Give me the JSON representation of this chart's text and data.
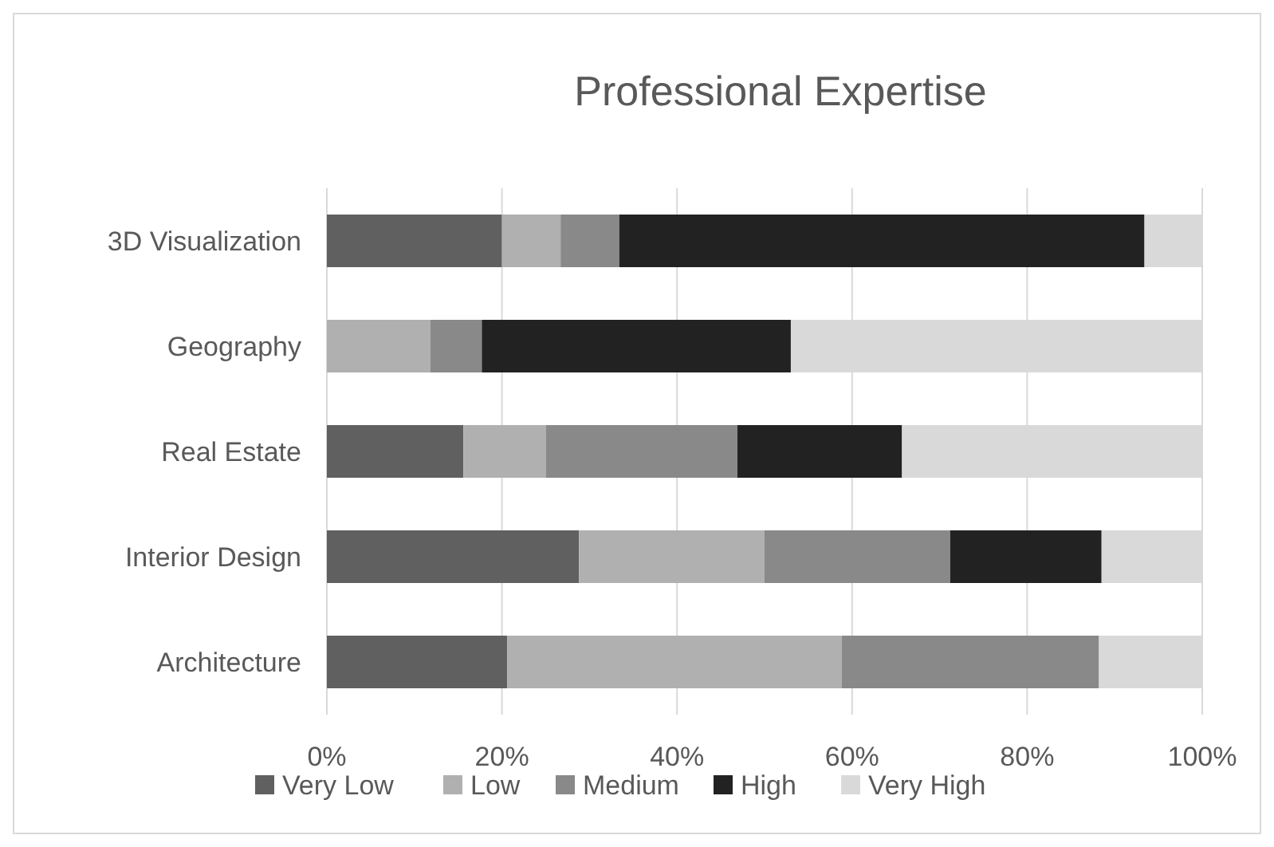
{
  "chart_data": {
    "type": "bar",
    "title": "Professional Expertise",
    "orientation": "horizontal",
    "stacked": true,
    "categories": [
      "3D Visualization",
      "Geography",
      "Real Estate",
      "Interior Design",
      "Architecture"
    ],
    "series": [
      {
        "name": "Very Low",
        "color": "#606060",
        "values": [
          20,
          0,
          15.6,
          28.8,
          20.6
        ]
      },
      {
        "name": "Low",
        "color": "#b0b0b0",
        "values": [
          6.7,
          11.8,
          9.4,
          21.2,
          38.2
        ]
      },
      {
        "name": "Medium",
        "color": "#898989",
        "values": [
          6.7,
          5.9,
          21.9,
          21.2,
          29.4
        ]
      },
      {
        "name": "High",
        "color": "#222222",
        "values": [
          60,
          35.3,
          18.8,
          17.3,
          0
        ]
      },
      {
        "name": "Very High",
        "color": "#d9d9d9",
        "values": [
          6.6,
          47,
          34.3,
          11.5,
          11.8
        ]
      }
    ],
    "xlim": [
      0,
      100
    ],
    "xticks": [
      {
        "value": 0,
        "label": "0%"
      },
      {
        "value": 20,
        "label": "20%"
      },
      {
        "value": 40,
        "label": "40%"
      },
      {
        "value": 60,
        "label": "60%"
      },
      {
        "value": 80,
        "label": "80%"
      },
      {
        "value": 100,
        "label": "100%"
      }
    ],
    "grid": "x",
    "legend": "bottom"
  }
}
